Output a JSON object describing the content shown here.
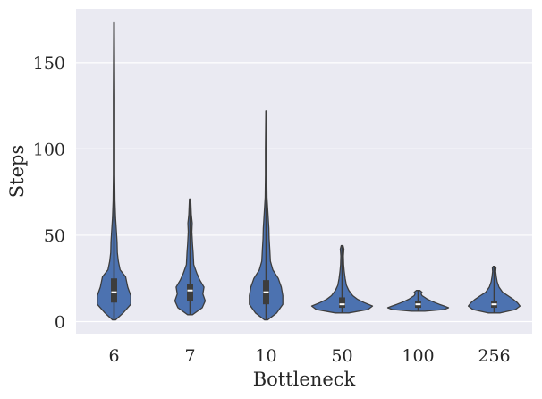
{
  "chart_data": {
    "type": "violin",
    "xlabel": "Bottleneck",
    "ylabel": "Steps",
    "ylim": [
      -7,
      181
    ],
    "yticks": [
      0,
      50,
      100,
      150
    ],
    "grid": true,
    "background_color": "#eaeaf2",
    "violin_color": "#4c72b0",
    "categories": [
      "6",
      "7",
      "10",
      "50",
      "100",
      "256"
    ],
    "distributions": [
      {
        "category": "6",
        "min": 1,
        "q1": 11,
        "median": 17,
        "q3": 25,
        "max": 173,
        "density": [
          [
            1,
            0.05
          ],
          [
            5,
            0.3
          ],
          [
            10,
            0.55
          ],
          [
            15,
            0.55
          ],
          [
            20,
            0.45
          ],
          [
            26,
            0.38
          ],
          [
            30,
            0.2
          ],
          [
            35,
            0.14
          ],
          [
            40,
            0.11
          ],
          [
            46,
            0.1
          ],
          [
            52,
            0.08
          ],
          [
            60,
            0.05
          ],
          [
            70,
            0.03
          ],
          [
            85,
            0.02
          ],
          [
            100,
            0.02
          ],
          [
            130,
            0.02
          ],
          [
            173,
            0.01
          ]
        ]
      },
      {
        "category": "7",
        "min": 4,
        "q1": 12,
        "median": 18,
        "q3": 22,
        "max": 71,
        "density": [
          [
            4,
            0.08
          ],
          [
            8,
            0.4
          ],
          [
            12,
            0.5
          ],
          [
            16,
            0.42
          ],
          [
            20,
            0.46
          ],
          [
            24,
            0.32
          ],
          [
            28,
            0.22
          ],
          [
            33,
            0.12
          ],
          [
            40,
            0.1
          ],
          [
            45,
            0.08
          ],
          [
            52,
            0.06
          ],
          [
            57,
            0.07
          ],
          [
            62,
            0.04
          ],
          [
            71,
            0.02
          ]
        ]
      },
      {
        "category": "10",
        "min": 1,
        "q1": 10,
        "median": 17,
        "q3": 24,
        "max": 122,
        "density": [
          [
            1,
            0.05
          ],
          [
            5,
            0.35
          ],
          [
            10,
            0.55
          ],
          [
            15,
            0.55
          ],
          [
            20,
            0.5
          ],
          [
            25,
            0.4
          ],
          [
            30,
            0.22
          ],
          [
            35,
            0.14
          ],
          [
            42,
            0.12
          ],
          [
            48,
            0.1
          ],
          [
            54,
            0.09
          ],
          [
            60,
            0.07
          ],
          [
            66,
            0.05
          ],
          [
            72,
            0.03
          ],
          [
            85,
            0.02
          ],
          [
            100,
            0.02
          ],
          [
            122,
            0.01
          ]
        ]
      },
      {
        "category": "50",
        "min": 5,
        "q1": 8,
        "median": 10,
        "q3": 14,
        "max": 44,
        "density": [
          [
            5,
            0.22
          ],
          [
            7,
            0.85
          ],
          [
            9,
            1.0
          ],
          [
            11,
            0.72
          ],
          [
            13,
            0.5
          ],
          [
            15,
            0.35
          ],
          [
            18,
            0.22
          ],
          [
            21,
            0.14
          ],
          [
            25,
            0.1
          ],
          [
            29,
            0.07
          ],
          [
            33,
            0.05
          ],
          [
            38,
            0.04
          ],
          [
            42,
            0.06
          ],
          [
            44,
            0.03
          ]
        ]
      },
      {
        "category": "100",
        "min": 6,
        "q1": 8,
        "median": 10,
        "q3": 12,
        "max": 18,
        "density": [
          [
            6,
            0.22
          ],
          [
            7,
            0.85
          ],
          [
            8,
            1.0
          ],
          [
            9,
            0.86
          ],
          [
            10,
            0.7
          ],
          [
            11,
            0.55
          ],
          [
            12,
            0.42
          ],
          [
            13,
            0.3
          ],
          [
            14,
            0.22
          ],
          [
            15,
            0.13
          ],
          [
            16,
            0.1
          ],
          [
            17,
            0.13
          ],
          [
            18,
            0.06
          ]
        ]
      },
      {
        "category": "256",
        "min": 5,
        "q1": 8,
        "median": 10,
        "q3": 12,
        "max": 32,
        "density": [
          [
            5,
            0.2
          ],
          [
            7,
            0.7
          ],
          [
            9,
            0.85
          ],
          [
            11,
            0.76
          ],
          [
            13,
            0.62
          ],
          [
            15,
            0.45
          ],
          [
            17,
            0.28
          ],
          [
            20,
            0.16
          ],
          [
            23,
            0.1
          ],
          [
            26,
            0.07
          ],
          [
            29,
            0.05
          ],
          [
            31,
            0.06
          ],
          [
            32,
            0.03
          ]
        ]
      }
    ]
  }
}
